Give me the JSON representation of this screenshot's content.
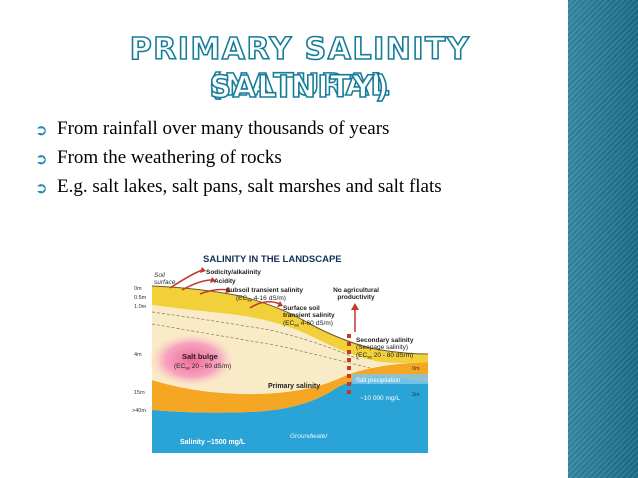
{
  "slide": {
    "title_lines": [
      "Primary Salinity (Natural",
      "Salinity)"
    ],
    "bullets": [
      "From rainfall over many thousands of years",
      "From the weathering of rocks",
      "E.g. salt lakes, salt pans, salt marshes and salt flats"
    ],
    "bullet_icon": "circled-arrow-icon",
    "colors": {
      "accent": "#157d9a",
      "sidebar": "#1f6f8c"
    }
  },
  "figure": {
    "heading": "SALINITY IN THE LANDSCAPE",
    "soil_surface": [
      "Soil",
      "surface"
    ],
    "depths": [
      "0m",
      "0.5m",
      "1.0m",
      "4m",
      "15m",
      ">40m"
    ],
    "right_depths": [
      "0m",
      "2m"
    ],
    "labels": {
      "sodicity": "Sodicity/alkalinity",
      "acidity": "Acidity",
      "subsoil_1": "Subsoil transient salinity",
      "subsoil_2": "(EC",
      "subsoil_sub": "se",
      "subsoil_3": " 4-16 dS/m)",
      "surface_1": "Surface soil",
      "surface_2": "transient salinity",
      "surface_3": "(EC",
      "surface_sub": "se",
      "surface_4": " 4-60 dS/m)",
      "no_ag_1": "No agricultural",
      "no_ag_2": "productivity",
      "secondary_1": "Secondary salinity",
      "secondary_2": "(Seepage salinity)",
      "secondary_3": "(EC",
      "secondary_sub": "se",
      "secondary_4": " 20 - 80 dS/m)",
      "bulge_1": "Salt bulge",
      "bulge_2": "(EC",
      "bulge_sub": "se",
      "bulge_3": " 20 - 60 dS/m)",
      "primary": "Primary salinity",
      "salt_precipitation": "Salt precipitation",
      "conc": "~10 000 mg/L",
      "groundwater": "Groundwater",
      "salinity_bottom": "Salinity ~1500 mg/L"
    }
  }
}
